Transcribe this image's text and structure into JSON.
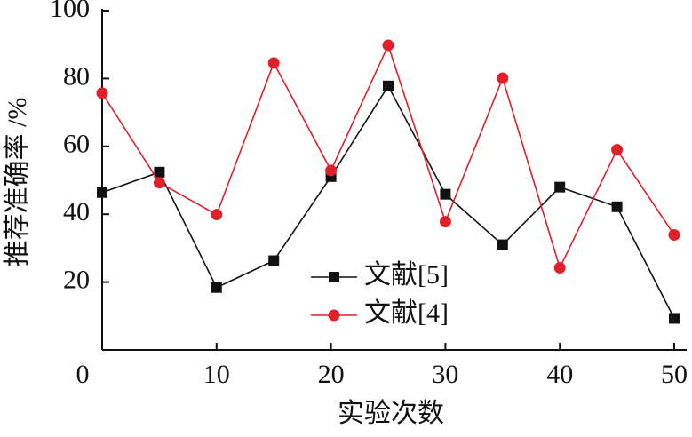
{
  "chart_data": {
    "type": "line",
    "x_label": "实验次数",
    "y_label": "推荐准确率 /%",
    "x": [
      0,
      5,
      10,
      15,
      20,
      25,
      30,
      35,
      40,
      45,
      50
    ],
    "series": [
      {
        "name": "文献[5]",
        "color": "#111111",
        "marker": "square",
        "values": [
          46.4,
          52.4,
          18.4,
          26.3,
          51.1,
          77.8,
          45.9,
          31.0,
          48.0,
          42.2,
          9.3
        ]
      },
      {
        "name": "文献[4]",
        "color": "#e0202a",
        "marker": "circle",
        "values": [
          75.7,
          49.3,
          39.9,
          84.6,
          52.9,
          89.8,
          37.8,
          80.1,
          24.2,
          59.0,
          33.9
        ]
      }
    ],
    "xlim": [
      0,
      50
    ],
    "xticks": [
      0,
      10,
      20,
      30,
      40,
      50
    ],
    "ylim": [
      0,
      100
    ],
    "yticks": [
      20,
      40,
      60,
      80,
      100
    ],
    "grid": false
  }
}
